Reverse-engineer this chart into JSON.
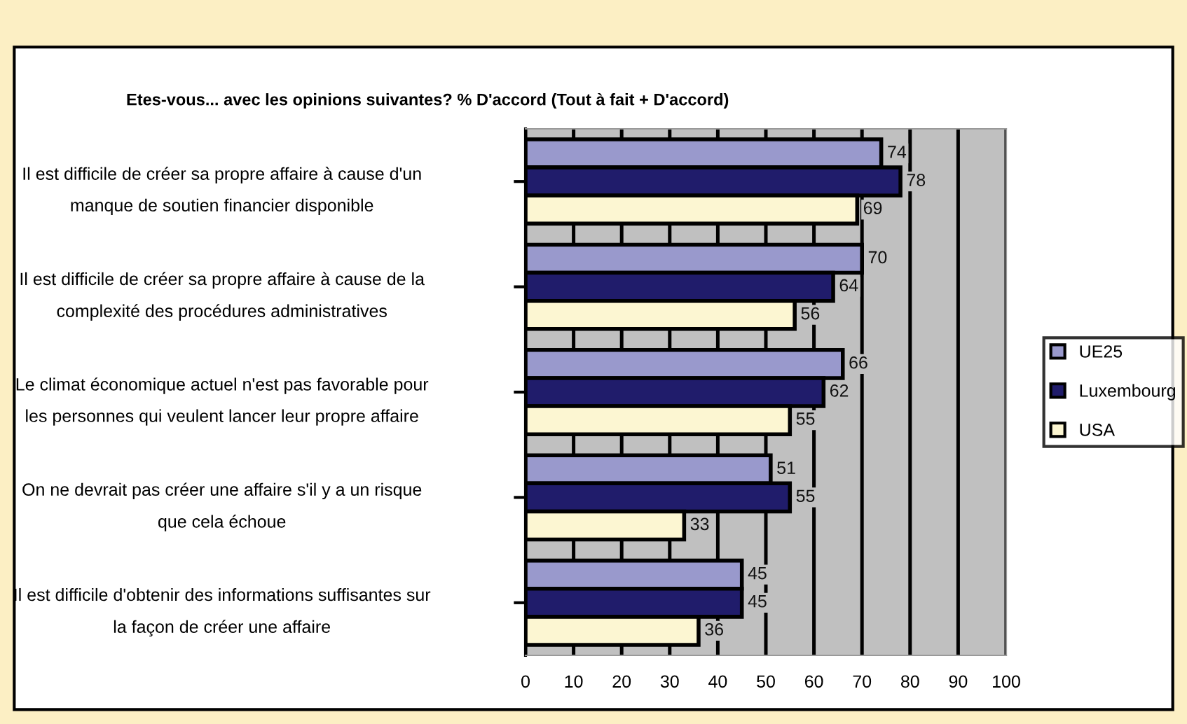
{
  "chart_data": {
    "type": "bar",
    "orientation": "horizontal",
    "title": "Etes-vous... avec les opinions suivantes? % D'accord (Tout à fait + D'accord)",
    "categories": [
      "Il est difficile de créer sa propre affaire à cause d'un\nmanque de soutien financier disponible",
      "Il est difficile de créer sa propre affaire à cause de la\ncomplexité des procédures administratives",
      "Le climat économique actuel n'est pas favorable pour\nles personnes qui veulent lancer leur propre affaire",
      "On ne devrait pas créer une affaire s'il y a un risque\nque cela échoue",
      "Il est difficile d'obtenir des informations suffisantes sur\nla façon de créer une affaire"
    ],
    "series": [
      {
        "name": "UE25",
        "color": "#9999cc",
        "values": [
          74,
          70,
          66,
          51,
          45
        ]
      },
      {
        "name": "Luxembourg",
        "color": "#201c6b",
        "values": [
          78,
          64,
          62,
          55,
          45
        ]
      },
      {
        "name": "USA",
        "color": "#fcf6d2",
        "values": [
          69,
          56,
          55,
          33,
          36
        ]
      }
    ],
    "xlim": [
      0,
      100
    ],
    "xticks": [
      0,
      10,
      20,
      30,
      40,
      50,
      60,
      70,
      80,
      90,
      100
    ],
    "grid": "x",
    "legend": "right",
    "data_labels": true
  }
}
